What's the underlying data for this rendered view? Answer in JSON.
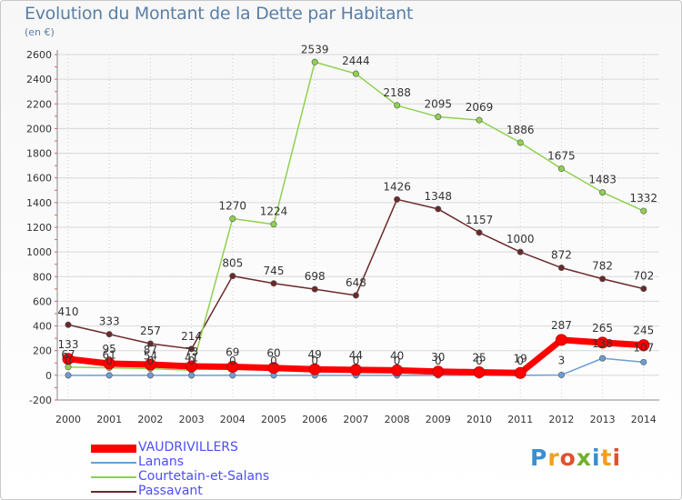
{
  "title": "Evolution du Montant de la Dette par Habitant",
  "unit": "(en €)",
  "logo_text": "Proxiti",
  "chart_data": {
    "type": "line",
    "title": "Evolution du Montant de la Dette par Habitant",
    "ylabel": "(en €)",
    "xlabel": "",
    "ylim": [
      -200,
      2600
    ],
    "yticks": [
      "-200",
      "0",
      "200",
      "400",
      "600",
      "800",
      "1000",
      "1200",
      "1400",
      "1600",
      "1800",
      "2000",
      "2200",
      "2400",
      "2600"
    ],
    "categories": [
      "2000",
      "2001",
      "2002",
      "2003",
      "2004",
      "2005",
      "2006",
      "2007",
      "2008",
      "2009",
      "2010",
      "2011",
      "2012",
      "2013",
      "2014"
    ],
    "grid": true,
    "legend_position": "bottom-left",
    "series": [
      {
        "name": "VAUDRIVILLERS",
        "color": "#ff0000",
        "values": [
          133,
          95,
          87,
          73,
          69,
          60,
          49,
          44,
          40,
          30,
          25,
          19,
          287,
          265,
          245
        ],
        "labels": [
          "133",
          "95",
          "87",
          "73",
          "69",
          "60",
          "49",
          "44",
          "40",
          "30",
          "25",
          "19",
          "287",
          "265",
          "245"
        ]
      },
      {
        "name": "Lanans",
        "color": "#6b9ed3",
        "values": [
          0,
          0,
          0,
          0,
          0,
          0,
          0,
          0,
          0,
          0,
          0,
          0,
          3,
          138,
          107
        ],
        "labels": [
          "0",
          "0",
          "0",
          "0",
          "0",
          "0",
          "0",
          "0",
          "0",
          "0",
          "0",
          "0",
          "3",
          "138",
          "107"
        ]
      },
      {
        "name": "Courtetain-et-Salans",
        "color": "#8fd14f",
        "values": [
          67,
          61,
          54,
          41,
          1270,
          1224,
          2539,
          2444,
          2188,
          2095,
          2069,
          1886,
          1675,
          1483,
          1332
        ],
        "labels": [
          "67",
          "61",
          "54",
          "41",
          "1270",
          "1224",
          "2539",
          "2444",
          "2188",
          "2095",
          "2069",
          "1886",
          "1675",
          "1483",
          "1332"
        ]
      },
      {
        "name": "Passavant",
        "color": "#6b2a2a",
        "values": [
          410,
          333,
          257,
          214,
          805,
          745,
          698,
          648,
          1426,
          1348,
          1157,
          1000,
          872,
          782,
          702
        ],
        "labels": [
          "410",
          "333",
          "257",
          "214",
          "805",
          "745",
          "698",
          "648",
          "1426",
          "1348",
          "1157",
          "1000",
          "872",
          "782",
          "702"
        ]
      }
    ]
  },
  "legend": [
    {
      "label": "VAUDRIVILLERS",
      "color": "#ff0000"
    },
    {
      "label": "Lanans",
      "color": "#6b9ed3"
    },
    {
      "label": "Courtetain-et-Salans",
      "color": "#8fd14f"
    },
    {
      "label": "Passavant",
      "color": "#6b2a2a"
    }
  ]
}
